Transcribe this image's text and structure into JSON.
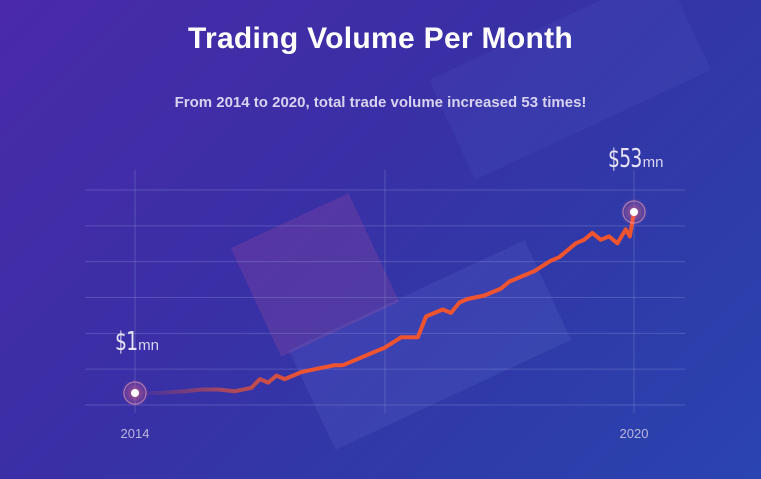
{
  "title": "Trading Volume Per Month",
  "subtitle": "From 2014 to 2020, total trade volume increased 53 times!",
  "chart_data": {
    "type": "line",
    "title": "Trading Volume Per Month",
    "xlabel": "",
    "ylabel": "",
    "x_ticks": [
      "2014",
      "2020"
    ],
    "xlim": [
      2014,
      2020
    ],
    "ylim": [
      0,
      60
    ],
    "grid": true,
    "series": [
      {
        "x": [
          2014.0,
          2014.3,
          2014.6,
          2014.8,
          2015.0,
          2015.2,
          2015.4,
          2015.5,
          2015.6,
          2015.7,
          2015.8,
          2016.0,
          2016.2,
          2016.4,
          2016.5,
          2016.7,
          2016.9,
          2017.0,
          2017.2,
          2017.4,
          2017.5,
          2017.7,
          2017.8,
          2017.9,
          2018.0,
          2018.2,
          2018.4,
          2018.5,
          2018.6,
          2018.8,
          2019.0,
          2019.1,
          2019.2,
          2019.3,
          2019.4,
          2019.5,
          2019.6,
          2019.7,
          2019.8,
          2019.9,
          2019.95,
          2020.0
        ],
        "values": [
          1,
          1,
          1.5,
          2,
          2,
          1.5,
          2.5,
          5,
          4,
          6,
          5,
          7,
          8,
          9,
          9,
          11,
          13,
          14,
          17,
          17,
          23,
          25,
          24,
          27,
          28,
          29,
          31,
          33,
          34,
          36,
          39,
          40,
          42,
          44,
          45,
          47,
          45,
          46,
          44,
          48,
          46,
          53
        ]
      }
    ],
    "annotations": [
      {
        "x": 2014,
        "value": "$1",
        "unit": "mn"
      },
      {
        "x": 2020,
        "value": "$53",
        "unit": "mn"
      }
    ],
    "line_color": "#f0542f"
  }
}
